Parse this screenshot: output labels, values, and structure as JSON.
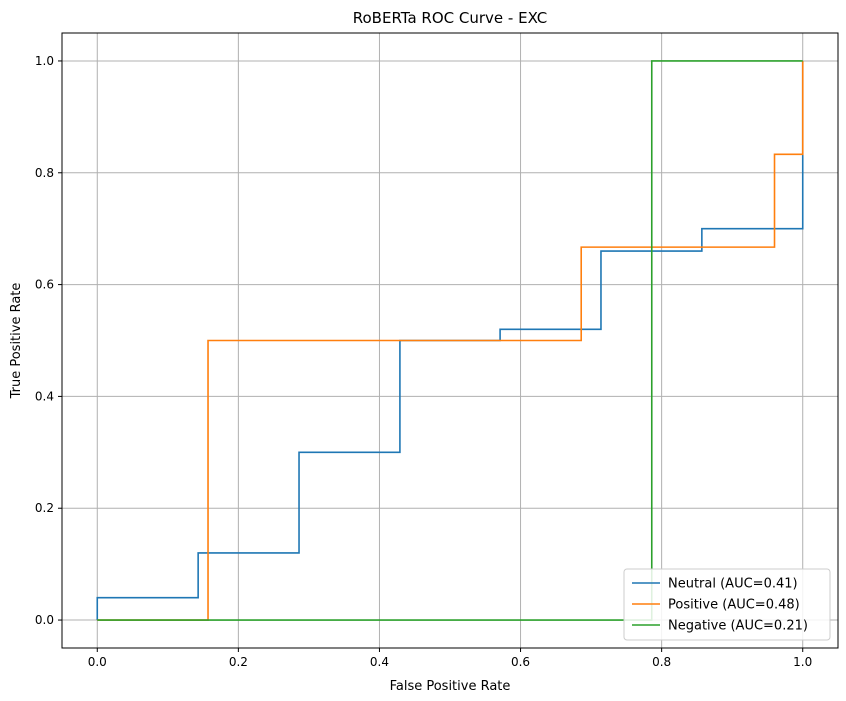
{
  "chart_data": {
    "type": "line",
    "title": "RoBERTa ROC Curve - EXC",
    "xlabel": "False Positive Rate",
    "ylabel": "True Positive Rate",
    "xlim": [
      -0.05,
      1.05
    ],
    "ylim": [
      -0.05,
      1.05
    ],
    "xticks": [
      "0.0",
      "0.2",
      "0.4",
      "0.6",
      "0.8",
      "1.0"
    ],
    "yticks": [
      "0.0",
      "0.2",
      "0.4",
      "0.6",
      "0.8",
      "1.0"
    ],
    "grid": true,
    "legend_position": "lower-right",
    "series": [
      {
        "name": "Neutral (AUC=0.41)",
        "color": "#1f77b4",
        "x": [
          0,
          0,
          0.143,
          0.143,
          0.286,
          0.286,
          0.429,
          0.429,
          0.571,
          0.571,
          0.714,
          0.714,
          0.857,
          0.857,
          1.0,
          1.0
        ],
        "y": [
          0,
          0.04,
          0.04,
          0.12,
          0.12,
          0.3,
          0.3,
          0.5,
          0.5,
          0.52,
          0.52,
          0.66,
          0.66,
          0.7,
          0.7,
          1.0
        ]
      },
      {
        "name": "Positive (AUC=0.48)",
        "color": "#ff7f0e",
        "x": [
          0,
          0.157,
          0.157,
          0.686,
          0.686,
          0.96,
          0.96,
          1.0,
          1.0
        ],
        "y": [
          0,
          0,
          0.5,
          0.5,
          0.667,
          0.667,
          0.833,
          0.833,
          1.0
        ]
      },
      {
        "name": "Negative (AUC=0.21)",
        "color": "#2ca02c",
        "x": [
          0,
          0.786,
          0.786,
          1.0
        ],
        "y": [
          0,
          0,
          1.0,
          1.0
        ]
      }
    ]
  }
}
